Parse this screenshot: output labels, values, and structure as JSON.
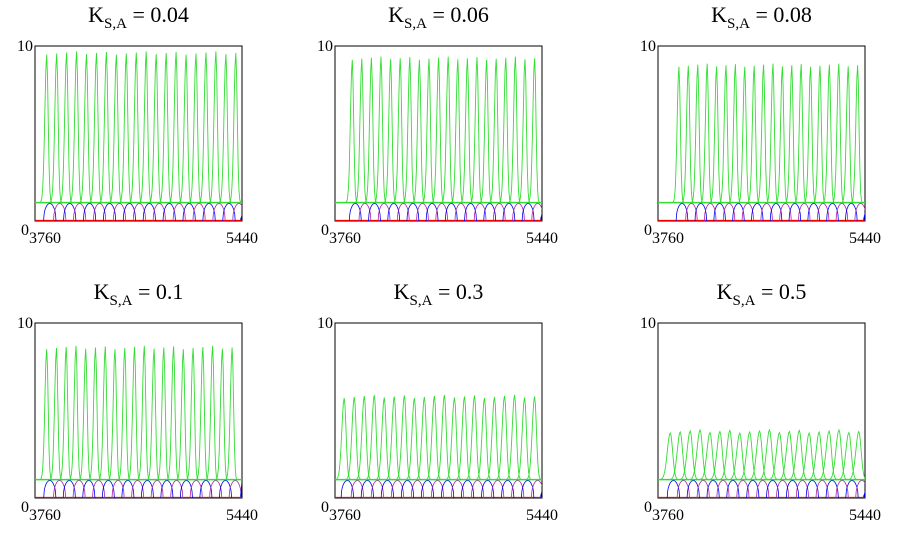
{
  "figure": {
    "panels": [
      {
        "title_main": "K",
        "title_sub": "S,A",
        "title_rest": " = 0.04"
      },
      {
        "title_main": "K",
        "title_sub": "S,A",
        "title_rest": " = 0.06"
      },
      {
        "title_main": "K",
        "title_sub": "S,A",
        "title_rest": " = 0.08"
      },
      {
        "title_main": "K",
        "title_sub": "S,A",
        "title_rest": " = 0.1"
      },
      {
        "title_main": "K",
        "title_sub": "S,A",
        "title_rest": " = 0.3"
      },
      {
        "title_main": "K",
        "title_sub": "S,A",
        "title_rest": " = 0.5"
      }
    ]
  },
  "chart_data": [
    {
      "type": "line",
      "title": "K_S,A = 0.04",
      "xlim": [
        3760,
        5440
      ],
      "ylim": [
        0,
        10
      ],
      "xticks": [
        "3760",
        "5440"
      ],
      "yticks": [
        "0",
        "10"
      ],
      "green": {
        "baseline": 1.05,
        "peak": 9.6,
        "n_pulses": 20,
        "start": 3855,
        "end": 5390
      },
      "blue": {
        "peak": 1.0,
        "n_pulses": 20,
        "start": 3880,
        "end": 5440
      },
      "red": {
        "level": 0.02
      },
      "colors": {
        "green": "#33dd33",
        "blue": "#0000ee",
        "purple": "#aa22aa",
        "red": "#ee0000"
      }
    },
    {
      "type": "line",
      "title": "K_S,A = 0.06",
      "xlim": [
        3760,
        5440
      ],
      "ylim": [
        0,
        10
      ],
      "xticks": [
        "3760",
        "5440"
      ],
      "yticks": [
        "0",
        "10"
      ],
      "green": {
        "baseline": 1.05,
        "peak": 9.3,
        "n_pulses": 20,
        "start": 3900,
        "end": 5380
      },
      "blue": {
        "peak": 1.0,
        "n_pulses": 20,
        "start": 3925,
        "end": 5440
      },
      "red": {
        "level": 0.02
      },
      "colors": {
        "green": "#33dd33",
        "blue": "#0000ee",
        "purple": "#aa22aa",
        "red": "#ee0000"
      }
    },
    {
      "type": "line",
      "title": "K_S,A = 0.08",
      "xlim": [
        3760,
        5440
      ],
      "ylim": [
        0,
        10
      ],
      "xticks": [
        "3760",
        "5440"
      ],
      "yticks": [
        "0",
        "10"
      ],
      "green": {
        "baseline": 1.05,
        "peak": 8.9,
        "n_pulses": 20,
        "start": 3930,
        "end": 5380
      },
      "blue": {
        "peak": 1.0,
        "n_pulses": 20,
        "start": 3955,
        "end": 5440
      },
      "red": {
        "level": 0.02
      },
      "colors": {
        "green": "#33dd33",
        "blue": "#0000ee",
        "purple": "#aa22aa",
        "red": "#ee0000"
      }
    },
    {
      "type": "line",
      "title": "K_S,A = 0.1",
      "xlim": [
        3760,
        5440
      ],
      "ylim": [
        0,
        10
      ],
      "xticks": [
        "3760",
        "5440"
      ],
      "yticks": [
        "0",
        "10"
      ],
      "green": {
        "baseline": 1.05,
        "peak": 8.6,
        "n_pulses": 20,
        "start": 3855,
        "end": 5360
      },
      "blue": {
        "peak": 1.0,
        "n_pulses": 20,
        "start": 3880,
        "end": 5440
      },
      "red": {
        "level": 0.02
      },
      "colors": {
        "green": "#33dd33",
        "blue": "#0000ee",
        "purple": "#aa22aa",
        "red": "#ee0000"
      }
    },
    {
      "type": "line",
      "title": "K_S,A = 0.3",
      "xlim": [
        3760,
        5440
      ],
      "ylim": [
        0,
        10
      ],
      "xticks": [
        "3760",
        "5440"
      ],
      "yticks": [
        "0",
        "10"
      ],
      "green": {
        "baseline": 1.05,
        "peak": 5.8,
        "n_pulses": 20,
        "start": 3835,
        "end": 5380
      },
      "blue": {
        "peak": 1.0,
        "n_pulses": 20,
        "start": 3860,
        "end": 5440
      },
      "red": {
        "level": 0.02
      },
      "colors": {
        "green": "#33dd33",
        "blue": "#0000ee",
        "purple": "#aa22aa",
        "red": "#ee0000"
      }
    },
    {
      "type": "line",
      "title": "K_S,A = 0.5",
      "xlim": [
        3760,
        5440
      ],
      "ylim": [
        0,
        10
      ],
      "xticks": [
        "3760",
        "5440"
      ],
      "yticks": [
        "0",
        "10"
      ],
      "green": {
        "baseline": 1.05,
        "peak": 3.8,
        "n_pulses": 20,
        "start": 3860,
        "end": 5390
      },
      "blue": {
        "peak": 1.0,
        "n_pulses": 20,
        "start": 3885,
        "end": 5440
      },
      "red": {
        "level": 0.02
      },
      "colors": {
        "green": "#33dd33",
        "blue": "#0000ee",
        "purple": "#aa22aa",
        "red": "#ee0000"
      }
    }
  ]
}
